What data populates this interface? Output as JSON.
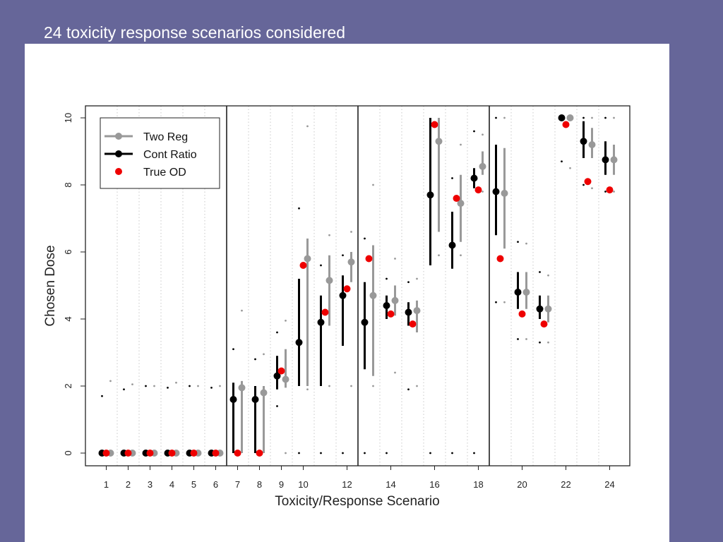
{
  "slide": {
    "title": "24 toxicity response scenarios considered"
  },
  "colors": {
    "background": "#666699",
    "two_reg": "#999999",
    "cont_ratio": "#000000",
    "true_od": "#ee0000"
  },
  "chart_data": {
    "type": "scatter",
    "xlabel": "Toxicity/Response Scenario",
    "ylabel": "Chosen Dose",
    "xlim": [
      0.5,
      24.5
    ],
    "ylim": [
      0,
      10
    ],
    "x_tick_labels": [
      "1",
      "2",
      "3",
      "4",
      "5",
      "6",
      "7",
      "8",
      "9",
      "10",
      "12",
      "14",
      "16",
      "18",
      "20",
      "22",
      "24"
    ],
    "x_tick_values": [
      1,
      2,
      3,
      4,
      5,
      6,
      7,
      8,
      9,
      10,
      12,
      14,
      16,
      18,
      20,
      22,
      24
    ],
    "y_ticks": [
      0,
      2,
      4,
      6,
      8,
      10
    ],
    "group_separators": [
      6.5,
      12.5,
      18.5
    ],
    "grid": "dotted vertical",
    "legend": {
      "position": "top-left",
      "entries": [
        "Two Reg",
        "Cont Ratio",
        "True OD"
      ]
    },
    "series": [
      {
        "name": "Cont Ratio",
        "points": [
          {
            "x": 1,
            "y": 0,
            "lo": 0,
            "hi": 0,
            "min": 1.7
          },
          {
            "x": 2,
            "y": 0,
            "lo": 0,
            "hi": 0,
            "min": 1.9
          },
          {
            "x": 3,
            "y": 0,
            "lo": 0,
            "hi": 0,
            "min": 2.0
          },
          {
            "x": 4,
            "y": 0,
            "lo": 0,
            "hi": 0,
            "min": 1.95
          },
          {
            "x": 5,
            "y": 0,
            "lo": 0,
            "hi": 0,
            "min": 2.0
          },
          {
            "x": 6,
            "y": 0,
            "lo": 0,
            "hi": 0,
            "min": 1.95
          },
          {
            "x": 7,
            "y": 1.6,
            "lo": 0,
            "hi": 2.1,
            "min": 3.1
          },
          {
            "x": 8,
            "y": 1.6,
            "lo": 0,
            "hi": 2.0,
            "min": 2.8
          },
          {
            "x": 9,
            "y": 2.3,
            "lo": 1.9,
            "hi": 2.9,
            "min": 1.4,
            "max": 3.6
          },
          {
            "x": 10,
            "y": 3.3,
            "lo": 2.0,
            "hi": 5.2,
            "min": 0,
            "max": 7.3
          },
          {
            "x": 11,
            "y": 3.9,
            "lo": 2.0,
            "hi": 4.7,
            "min": 0,
            "max": 5.6
          },
          {
            "x": 12,
            "y": 4.7,
            "lo": 3.2,
            "hi": 5.3,
            "min": 0,
            "max": 5.9
          },
          {
            "x": 13,
            "y": 3.9,
            "lo": 2.5,
            "hi": 5.1,
            "min": 0,
            "max": 6.4
          },
          {
            "x": 14,
            "y": 4.4,
            "lo": 4.0,
            "hi": 4.7,
            "min": 0,
            "max": 5.2
          },
          {
            "x": 15,
            "y": 4.2,
            "lo": 3.8,
            "hi": 4.5,
            "min": 1.9,
            "max": 5.1
          },
          {
            "x": 16,
            "y": 7.7,
            "lo": 5.6,
            "hi": 10.0,
            "min": 0
          },
          {
            "x": 17,
            "y": 6.2,
            "lo": 5.5,
            "hi": 7.2,
            "min": 0,
            "max": 8.2
          },
          {
            "x": 18,
            "y": 8.2,
            "lo": 7.9,
            "hi": 8.5,
            "min": 0,
            "max": 9.6
          },
          {
            "x": 19,
            "y": 7.8,
            "lo": 6.5,
            "hi": 9.2,
            "min": 4.5,
            "max": 10.0
          },
          {
            "x": 20,
            "y": 4.8,
            "lo": 4.3,
            "hi": 5.4,
            "min": 3.4,
            "max": 6.3
          },
          {
            "x": 21,
            "y": 4.3,
            "lo": 4.0,
            "hi": 4.7,
            "min": 3.3,
            "max": 5.4
          },
          {
            "x": 22,
            "y": 10.0,
            "lo": 10.0,
            "hi": 10.0,
            "min": 8.7
          },
          {
            "x": 23,
            "y": 9.3,
            "lo": 8.8,
            "hi": 9.9,
            "min": 8.0,
            "max": 10.0
          },
          {
            "x": 24,
            "y": 8.75,
            "lo": 8.3,
            "hi": 9.3,
            "min": 7.8,
            "max": 10.0
          }
        ]
      },
      {
        "name": "Two Reg",
        "points": [
          {
            "x": 1,
            "y": 0,
            "lo": 0,
            "hi": 0,
            "max": 2.15
          },
          {
            "x": 2,
            "y": 0,
            "lo": 0,
            "hi": 0,
            "max": 2.05
          },
          {
            "x": 3,
            "y": 0,
            "lo": 0,
            "hi": 0,
            "max": 2.0
          },
          {
            "x": 4,
            "y": 0,
            "lo": 0,
            "hi": 0,
            "max": 2.1
          },
          {
            "x": 5,
            "y": 0,
            "lo": 0,
            "hi": 0,
            "max": 2.0
          },
          {
            "x": 6,
            "y": 0,
            "lo": 0,
            "hi": 0,
            "max": 2.0
          },
          {
            "x": 7,
            "y": 1.95,
            "lo": 0,
            "hi": 2.15,
            "max": 4.25
          },
          {
            "x": 8,
            "y": 1.8,
            "lo": 0,
            "hi": 2.0,
            "max": 2.95
          },
          {
            "x": 9,
            "y": 2.2,
            "lo": 1.95,
            "hi": 3.1,
            "min": 0,
            "max": 3.95
          },
          {
            "x": 10,
            "y": 5.8,
            "lo": 2.0,
            "hi": 6.4,
            "min": 1.9,
            "max": 9.75
          },
          {
            "x": 11,
            "y": 5.15,
            "lo": 3.8,
            "hi": 5.9,
            "min": 2.0,
            "max": 6.5
          },
          {
            "x": 12,
            "y": 5.7,
            "lo": 5.1,
            "hi": 6.0,
            "min": 2.0,
            "max": 6.6
          },
          {
            "x": 13,
            "y": 4.7,
            "lo": 2.3,
            "hi": 6.2,
            "min": 2.0,
            "max": 8.0
          },
          {
            "x": 14,
            "y": 4.55,
            "lo": 4.1,
            "hi": 5.0,
            "min": 2.4,
            "max": 5.8
          },
          {
            "x": 15,
            "y": 4.25,
            "lo": 3.6,
            "hi": 4.55,
            "min": 2.0,
            "max": 5.2
          },
          {
            "x": 16,
            "y": 9.3,
            "lo": 6.6,
            "hi": 10.0,
            "min": 5.9
          },
          {
            "x": 17,
            "y": 7.45,
            "lo": 6.3,
            "hi": 8.3,
            "min": 5.9,
            "max": 9.2
          },
          {
            "x": 18,
            "y": 8.55,
            "lo": 8.3,
            "hi": 9.0,
            "min": 7.8,
            "max": 9.5
          },
          {
            "x": 19,
            "y": 7.75,
            "lo": 6.1,
            "hi": 9.1,
            "min": 4.5,
            "max": 10.0
          },
          {
            "x": 20,
            "y": 4.8,
            "lo": 4.3,
            "hi": 5.4,
            "min": 3.4,
            "max": 6.25
          },
          {
            "x": 21,
            "y": 4.3,
            "lo": 3.9,
            "hi": 4.7,
            "min": 3.3,
            "max": 5.3
          },
          {
            "x": 22,
            "y": 10.0,
            "lo": 10.0,
            "hi": 10.0,
            "min": 8.5
          },
          {
            "x": 23,
            "y": 9.2,
            "lo": 8.8,
            "hi": 9.7,
            "min": 7.9,
            "max": 10.0
          },
          {
            "x": 24,
            "y": 8.75,
            "lo": 8.3,
            "hi": 9.2,
            "min": 7.8,
            "max": 10.0
          }
        ]
      },
      {
        "name": "True OD",
        "points": [
          {
            "x": 1,
            "y": 0
          },
          {
            "x": 2,
            "y": 0
          },
          {
            "x": 3,
            "y": 0
          },
          {
            "x": 4,
            "y": 0
          },
          {
            "x": 5,
            "y": 0
          },
          {
            "x": 6,
            "y": 0
          },
          {
            "x": 7,
            "y": 0
          },
          {
            "x": 8,
            "y": 0
          },
          {
            "x": 9,
            "y": 2.45
          },
          {
            "x": 10,
            "y": 5.6
          },
          {
            "x": 11,
            "y": 4.2
          },
          {
            "x": 12,
            "y": 4.9
          },
          {
            "x": 13,
            "y": 5.8
          },
          {
            "x": 14,
            "y": 4.15
          },
          {
            "x": 15,
            "y": 3.85
          },
          {
            "x": 16,
            "y": 9.8
          },
          {
            "x": 17,
            "y": 7.6
          },
          {
            "x": 18,
            "y": 7.85
          },
          {
            "x": 19,
            "y": 5.8
          },
          {
            "x": 20,
            "y": 4.15
          },
          {
            "x": 21,
            "y": 3.85
          },
          {
            "x": 22,
            "y": 9.8
          },
          {
            "x": 23,
            "y": 8.1
          },
          {
            "x": 24,
            "y": 7.85
          }
        ]
      }
    ]
  }
}
